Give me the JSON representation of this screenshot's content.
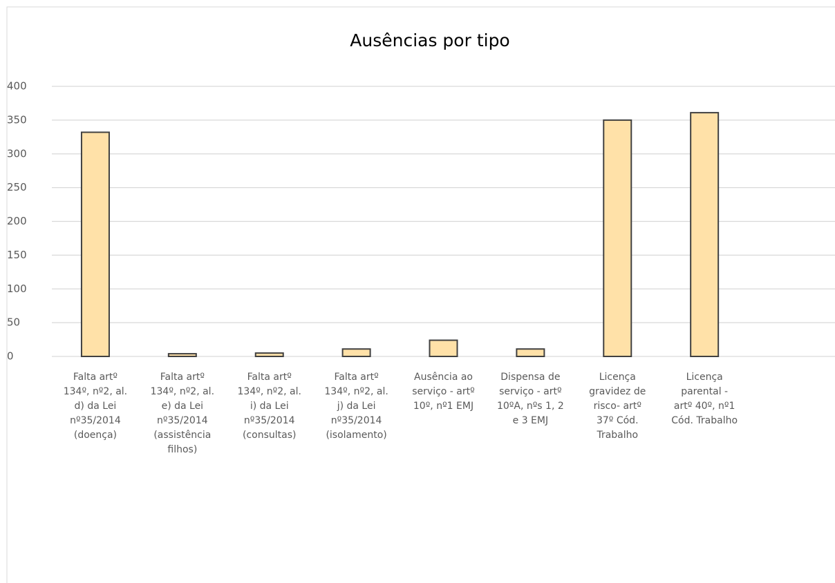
{
  "chart_data": {
    "type": "bar",
    "title": "Ausências por tipo",
    "categories": [
      "Falta artº\n134º, nº2, al.\nd) da Lei\nnº35/2014\n(doença)",
      "Falta artº\n134º, nº2, al.\ne) da Lei\nnº35/2014\n(assistência\nfilhos)",
      "Falta artº\n134º, nº2, al.\ni) da Lei\nnº35/2014\n(consultas)",
      "Falta artº\n134º, nº2, al.\nj) da Lei\nnº35/2014\n(isolamento)",
      "Ausência ao\nserviço - artº\n10º, nº1 EMJ",
      "Dispensa de\nserviço - artº\n10ºA, nºs 1, 2\ne 3 EMJ",
      "Licença\ngravidez de\nrisco- artº\n37º Cód.\nTrabalho",
      "Licença\nparental -\nartº 40º, nº1\nCód. Trabalho",
      null
    ],
    "values": [
      332,
      4,
      5,
      11,
      24,
      11,
      350,
      361,
      null
    ],
    "color": "#ffe1a8",
    "ylim": [
      0,
      400
    ],
    "yticks": [
      0,
      50,
      100,
      150,
      200,
      250,
      300,
      350,
      400
    ],
    "grid": true
  }
}
